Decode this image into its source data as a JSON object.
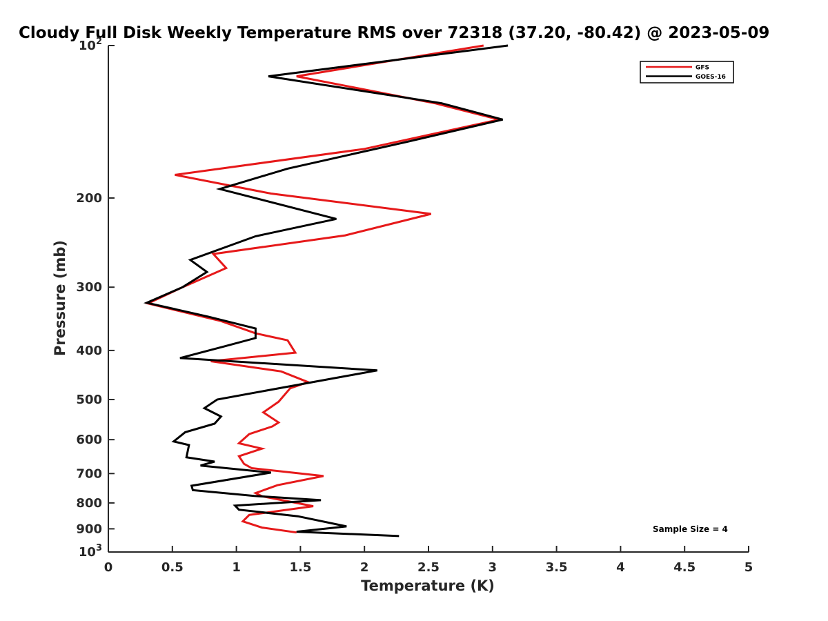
{
  "chart_data": {
    "type": "line",
    "title": "Cloudy Full Disk Weekly Temperature RMS over 72318 (37.20, -80.42) @ 2023-05-09",
    "xlabel": "Temperature (K)",
    "ylabel": "Pressure (mb)",
    "xlim": [
      0,
      5
    ],
    "ylim": [
      100,
      1000
    ],
    "y_scale": "log",
    "y_reversed": true,
    "grid": false,
    "legend_position": "top-right",
    "x_ticks": [
      0,
      0.5,
      1,
      1.5,
      2,
      2.5,
      3,
      3.5,
      4,
      4.5,
      5
    ],
    "x_tick_labels": [
      "0",
      "0.5",
      "1",
      "1.5",
      "2",
      "2.5",
      "3",
      "3.5",
      "4",
      "4.5",
      "5"
    ],
    "y_ticks": [
      100,
      200,
      300,
      400,
      500,
      600,
      700,
      800,
      900,
      1000
    ],
    "y_tick_labels": [
      {
        "base": "10",
        "exp": "2"
      },
      {
        "base": "200",
        "exp": ""
      },
      {
        "base": "300",
        "exp": ""
      },
      {
        "base": "400",
        "exp": ""
      },
      {
        "base": "500",
        "exp": ""
      },
      {
        "base": "600",
        "exp": ""
      },
      {
        "base": "700",
        "exp": ""
      },
      {
        "base": "800",
        "exp": ""
      },
      {
        "base": "900",
        "exp": ""
      },
      {
        "base": "10",
        "exp": "3"
      }
    ],
    "series": [
      {
        "name": "GFS",
        "color": "#e6191a",
        "points": [
          [
            2.93,
            100
          ],
          [
            1.47,
            115
          ],
          [
            2.55,
            130
          ],
          [
            3.05,
            140
          ],
          [
            2.0,
            160
          ],
          [
            0.52,
            180
          ],
          [
            1.27,
            196
          ],
          [
            2.52,
            215
          ],
          [
            1.85,
            237
          ],
          [
            0.82,
            258
          ],
          [
            0.92,
            275
          ],
          [
            0.58,
            300
          ],
          [
            0.31,
            323
          ],
          [
            0.88,
            350
          ],
          [
            1.15,
            370
          ],
          [
            1.4,
            382
          ],
          [
            1.46,
            404
          ],
          [
            0.8,
            420
          ],
          [
            1.35,
            440
          ],
          [
            1.56,
            462
          ],
          [
            1.42,
            475
          ],
          [
            1.33,
            505
          ],
          [
            1.21,
            530
          ],
          [
            1.33,
            555
          ],
          [
            1.28,
            565
          ],
          [
            1.1,
            585
          ],
          [
            1.02,
            610
          ],
          [
            1.2,
            625
          ],
          [
            1.02,
            647
          ],
          [
            1.06,
            670
          ],
          [
            1.12,
            683
          ],
          [
            1.68,
            708
          ],
          [
            1.32,
            738
          ],
          [
            1.15,
            765
          ],
          [
            1.2,
            776
          ],
          [
            1.6,
            812
          ],
          [
            1.1,
            845
          ],
          [
            1.05,
            870
          ],
          [
            1.2,
            895
          ],
          [
            1.47,
            915
          ]
        ]
      },
      {
        "name": "GOES-16",
        "color": "#000000",
        "points": [
          [
            3.12,
            100
          ],
          [
            1.25,
            115
          ],
          [
            2.6,
            130
          ],
          [
            3.08,
            140
          ],
          [
            2.33,
            155
          ],
          [
            1.4,
            175
          ],
          [
            0.87,
            192
          ],
          [
            1.78,
            220
          ],
          [
            1.15,
            238
          ],
          [
            0.64,
            265
          ],
          [
            0.77,
            280
          ],
          [
            0.58,
            300
          ],
          [
            0.3,
            322
          ],
          [
            0.78,
            343
          ],
          [
            1.15,
            362
          ],
          [
            1.15,
            378
          ],
          [
            0.9,
            393
          ],
          [
            0.56,
            414
          ],
          [
            2.1,
            438
          ],
          [
            1.8,
            452
          ],
          [
            0.85,
            500
          ],
          [
            0.75,
            520
          ],
          [
            0.88,
            540
          ],
          [
            0.83,
            558
          ],
          [
            0.6,
            580
          ],
          [
            0.51,
            605
          ],
          [
            0.63,
            615
          ],
          [
            0.61,
            650
          ],
          [
            0.83,
            663
          ],
          [
            0.72,
            675
          ],
          [
            1.27,
            697
          ],
          [
            0.65,
            740
          ],
          [
            0.66,
            755
          ],
          [
            1.14,
            775
          ],
          [
            1.66,
            790
          ],
          [
            0.99,
            810
          ],
          [
            1.02,
            825
          ],
          [
            1.48,
            850
          ],
          [
            1.86,
            890
          ],
          [
            1.47,
            912
          ],
          [
            2.27,
            930
          ]
        ]
      }
    ],
    "annotation": "Sample Size = 4"
  }
}
